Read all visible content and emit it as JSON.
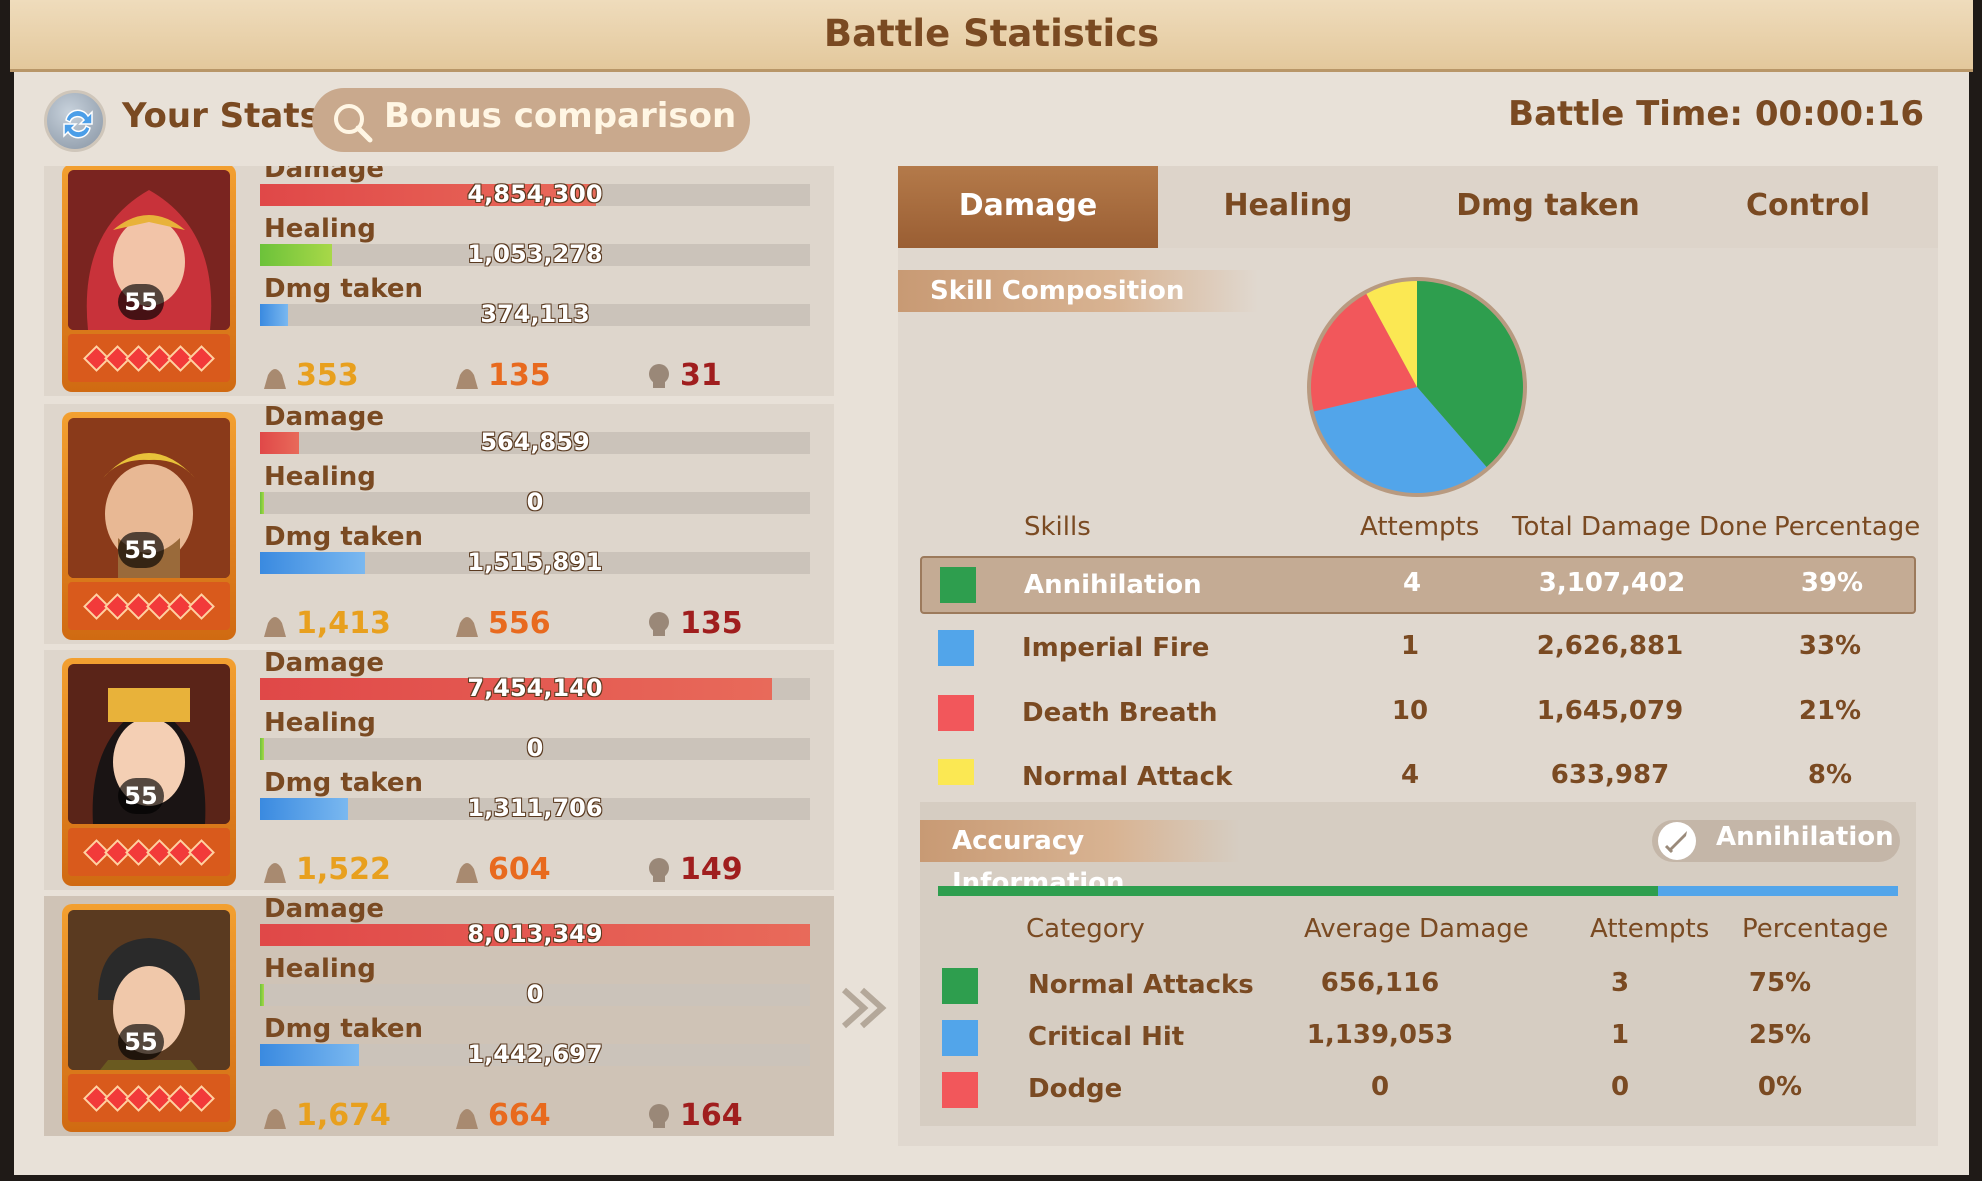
{
  "title": "Battle Statistics",
  "topbar": {
    "your_stats": "Your Stats",
    "bonus_comparison": "Bonus comparison",
    "battle_time": "Battle Time: 00:00:16"
  },
  "stat_labels": {
    "damage": "Damage",
    "healing": "Healing",
    "dmg_taken": "Dmg taken"
  },
  "heroes": [
    {
      "level": "55",
      "damage": "4,854,300",
      "healing": "1,053,278",
      "dmg_taken": "374,113",
      "damage_frac": 0.61,
      "healing_frac": 0.13,
      "taken_frac": 0.05,
      "kills_a": "353",
      "kills_b": "135",
      "kills_c": "31"
    },
    {
      "level": "55",
      "damage": "564,859",
      "healing": "0",
      "dmg_taken": "1,515,891",
      "damage_frac": 0.07,
      "healing_frac": 0.0,
      "taken_frac": 0.19,
      "kills_a": "1,413",
      "kills_b": "556",
      "kills_c": "135"
    },
    {
      "level": "55",
      "damage": "7,454,140",
      "healing": "0",
      "dmg_taken": "1,311,706",
      "damage_frac": 0.93,
      "healing_frac": 0.0,
      "taken_frac": 0.16,
      "kills_a": "1,522",
      "kills_b": "604",
      "kills_c": "149"
    },
    {
      "level": "55",
      "damage": "8,013,349",
      "healing": "0",
      "dmg_taken": "1,442,697",
      "damage_frac": 1.0,
      "healing_frac": 0.0,
      "taken_frac": 0.18,
      "kills_a": "1,674",
      "kills_b": "664",
      "kills_c": "164"
    }
  ],
  "tabs": [
    "Damage",
    "Healing",
    "Dmg taken",
    "Control"
  ],
  "skill_composition": {
    "header": "Skill Composition",
    "columns": {
      "skills": "Skills",
      "attempts": "Attempts",
      "total": "Total Damage Done",
      "percentage": "Percentage"
    },
    "rows": [
      {
        "name": "Annihilation",
        "attempts": "4",
        "total": "3,107,402",
        "pct": "39%",
        "color": "#2e9e4e"
      },
      {
        "name": "Imperial Fire",
        "attempts": "1",
        "total": "2,626,881",
        "pct": "33%",
        "color": "#52a5ea"
      },
      {
        "name": "Death Breath",
        "attempts": "10",
        "total": "1,645,079",
        "pct": "21%",
        "color": "#f2575b"
      },
      {
        "name": "Normal Attack",
        "attempts": "4",
        "total": "633,987",
        "pct": "8%",
        "color": "#fbe853"
      }
    ]
  },
  "chart_data": {
    "type": "pie",
    "categories": [
      "Annihilation",
      "Imperial Fire",
      "Death Breath",
      "Normal Attack"
    ],
    "values": [
      39,
      33,
      21,
      8
    ],
    "colors": [
      "#2e9e4e",
      "#52a5ea",
      "#f2575b",
      "#fbe853"
    ]
  },
  "accuracy": {
    "header": "Accuracy Information",
    "tag": "Annihilation",
    "columns": {
      "category": "Category",
      "avg": "Average Damage",
      "attempts": "Attempts",
      "percentage": "Percentage"
    },
    "rows": [
      {
        "name": "Normal Attacks",
        "avg": "656,116",
        "attempts": "3",
        "pct": "75%",
        "color": "#2e9e4e"
      },
      {
        "name": "Critical Hit",
        "avg": "1,139,053",
        "attempts": "1",
        "pct": "25%",
        "color": "#52a5ea"
      },
      {
        "name": "Dodge",
        "avg": "0",
        "attempts": "0",
        "pct": "0%",
        "color": "#f2575b"
      }
    ],
    "bar_fractions": [
      0.75,
      0.25,
      0.0
    ]
  }
}
